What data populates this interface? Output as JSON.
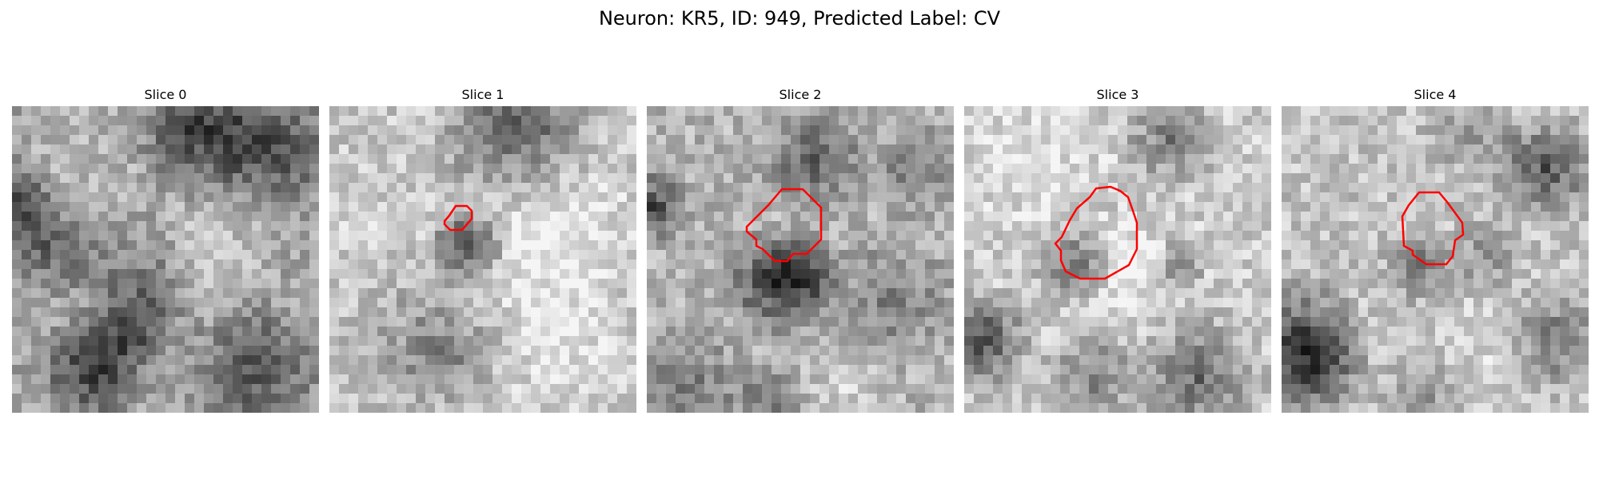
{
  "figure": {
    "title": "Neuron: KR5, ID: 949, Predicted Label: CV",
    "contour_color": "#ff0000",
    "slices": [
      {
        "title": "Slice 0",
        "has_contour": false
      },
      {
        "title": "Slice 1",
        "has_contour": true
      },
      {
        "title": "Slice 2",
        "has_contour": true
      },
      {
        "title": "Slice 3",
        "has_contour": true
      },
      {
        "title": "Slice 4",
        "has_contour": true
      }
    ]
  }
}
